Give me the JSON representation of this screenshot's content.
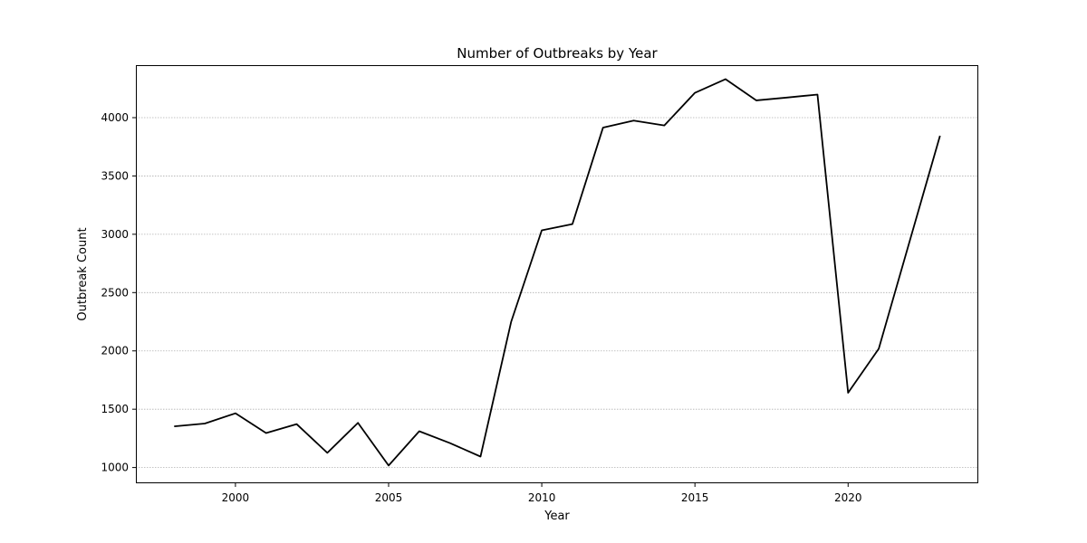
{
  "chart_data": {
    "type": "line",
    "title": "Number of Outbreaks by Year",
    "xlabel": "Year",
    "ylabel": "Outbreak Count",
    "xlim": [
      1996.75,
      2024.25
    ],
    "ylim": [
      865,
      4450
    ],
    "x_ticks": [
      2000,
      2005,
      2010,
      2015,
      2020
    ],
    "y_ticks": [
      1000,
      1500,
      2000,
      2500,
      3000,
      3500,
      4000
    ],
    "grid": "horizontal dotted",
    "line_color": "#000000",
    "series": [
      {
        "x": [
          1998,
          1999,
          2000,
          2001,
          2002,
          2003,
          2004,
          2005,
          2006,
          2007,
          2008,
          2009,
          2010,
          2011,
          2012,
          2013,
          2014,
          2015,
          2016,
          2017,
          2018,
          2019,
          2020,
          2021,
          2022,
          2023
        ],
        "values": [
          1353,
          1377,
          1465,
          1296,
          1372,
          1126,
          1383,
          1017,
          1311,
          1210,
          1094,
          2249,
          3034,
          3087,
          3915,
          3975,
          3933,
          4213,
          4330,
          4148,
          4172,
          4198,
          1641,
          2018,
          2932,
          3845
        ]
      }
    ]
  }
}
